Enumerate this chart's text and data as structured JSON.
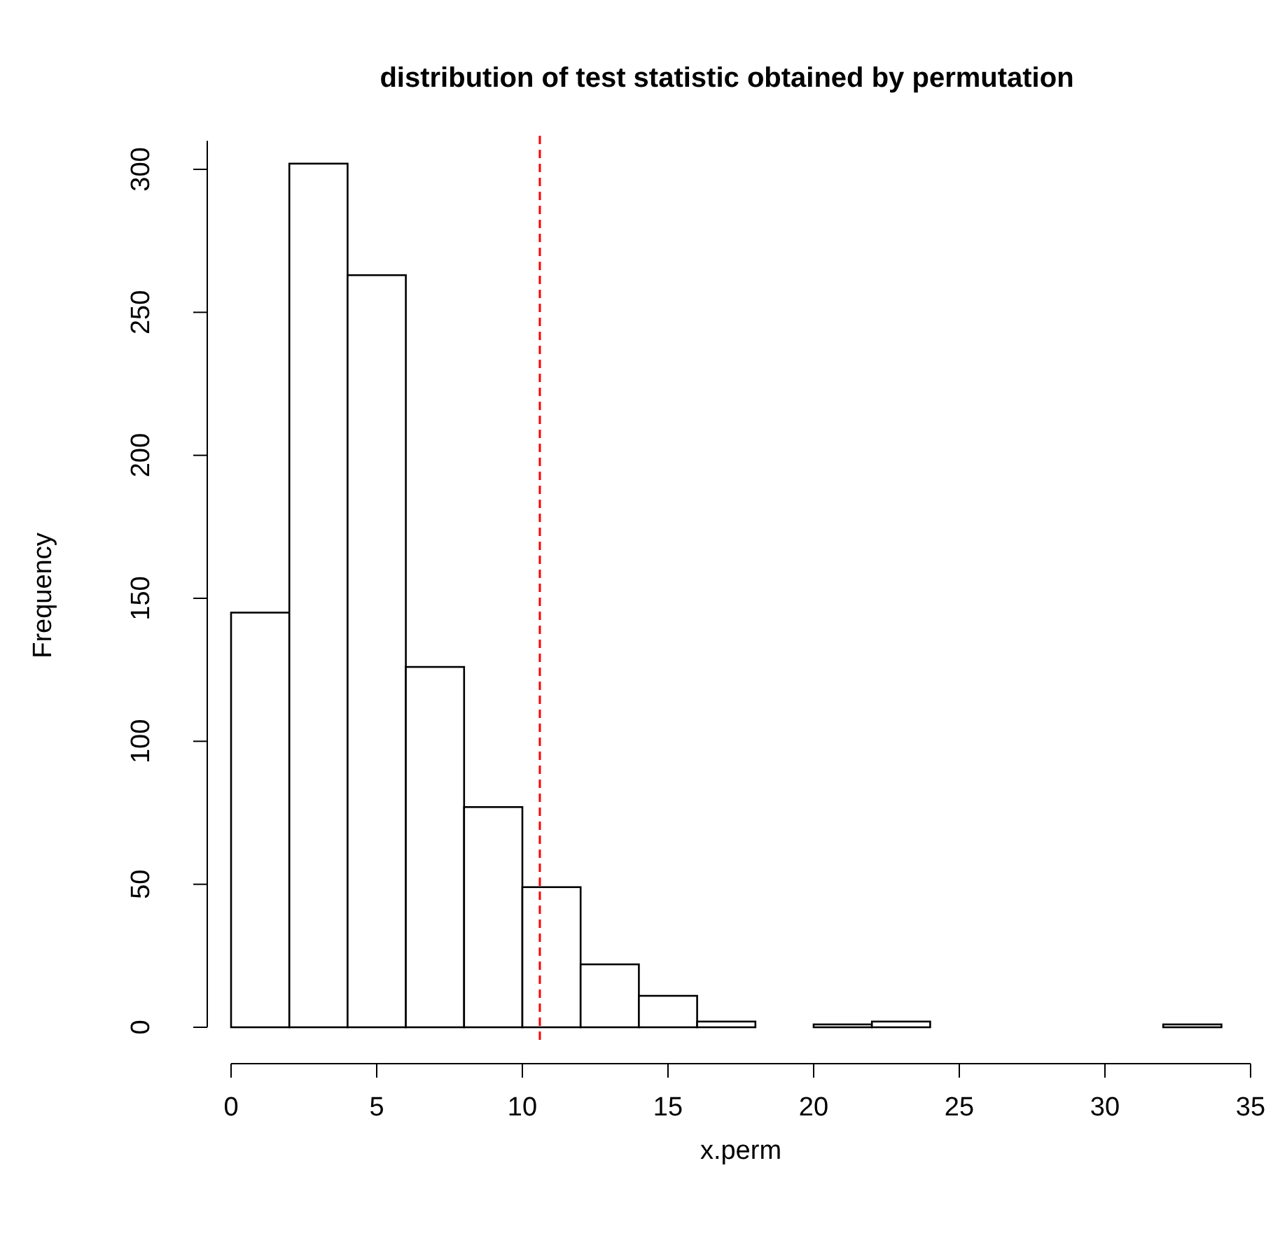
{
  "chart_data": {
    "type": "histogram",
    "title": "distribution of test statistic obtained by permutation",
    "xlabel": "x.perm",
    "ylabel": "Frequency",
    "bins": [
      0,
      2,
      4,
      6,
      8,
      10,
      12,
      14,
      16,
      18,
      20,
      22,
      24,
      26,
      28,
      30,
      32,
      34
    ],
    "values": [
      145,
      302,
      263,
      126,
      77,
      49,
      22,
      11,
      2,
      0,
      1,
      2,
      0,
      0,
      0,
      0,
      1
    ],
    "color": "#ffffff",
    "xlim": [
      0,
      35
    ],
    "xticks": [
      0,
      5,
      10,
      15,
      20,
      25,
      30,
      35
    ],
    "ylim": [
      0,
      310
    ],
    "yticks": [
      0,
      50,
      100,
      150,
      200,
      250,
      300
    ],
    "ref_lines": [
      {
        "axis": "x",
        "value": 10.6,
        "color": "#ff0000",
        "line_style": "dashed"
      }
    ]
  }
}
